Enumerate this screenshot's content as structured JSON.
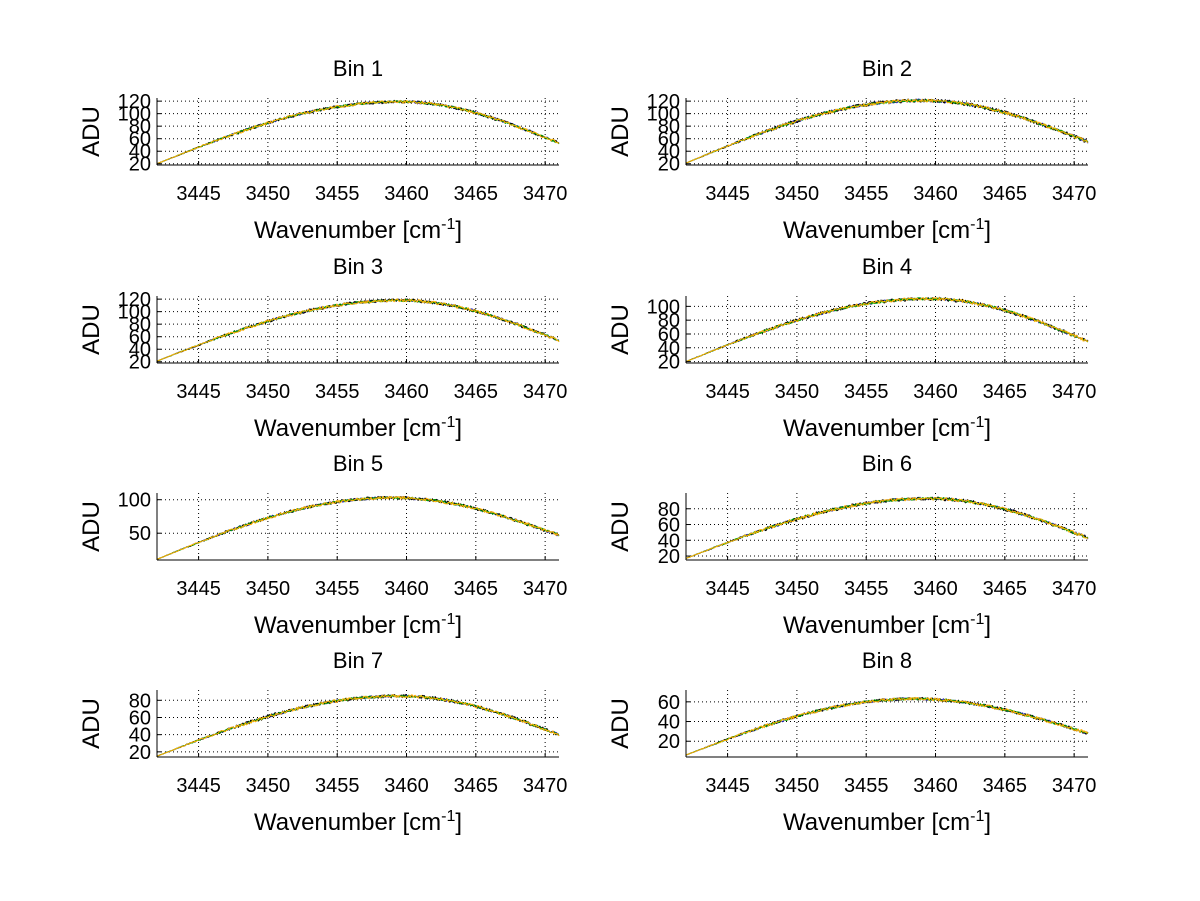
{
  "colors": {
    "series": [
      "#1f1fb4",
      "#000000",
      "#00a000",
      "#ffb000"
    ]
  },
  "chart_data": [
    {
      "type": "line",
      "title": "Bin 1",
      "xlabel": "Wavenumber [cm",
      "xlabel_sup": "-1",
      "xlabel_tail": "]",
      "ylabel": "ADU",
      "xlim": [
        3442,
        3471
      ],
      "ylim": [
        18,
        125
      ],
      "xticks": [
        3445,
        3450,
        3455,
        3460,
        3465,
        3470
      ],
      "yticks": [
        20,
        40,
        60,
        80,
        100,
        120
      ],
      "grid": true,
      "curve": {
        "x0": 3442,
        "y0": 20,
        "peak_x": 3459.5,
        "peak_y": 119,
        "x1": 3471,
        "y1": 53
      },
      "series": [
        {
          "noise": 2.0
        },
        {
          "noise": 2.5
        },
        {
          "noise": 1.8
        },
        {
          "noise": 2.2
        }
      ]
    },
    {
      "type": "line",
      "title": "Bin 2",
      "xlabel": "Wavenumber [cm",
      "xlabel_sup": "-1",
      "xlabel_tail": "]",
      "ylabel": "ADU",
      "xlim": [
        3442,
        3471
      ],
      "ylim": [
        18,
        125
      ],
      "xticks": [
        3445,
        3450,
        3455,
        3460,
        3465,
        3470
      ],
      "yticks": [
        20,
        40,
        60,
        80,
        100,
        120
      ],
      "grid": true,
      "curve": {
        "x0": 3442,
        "y0": 21,
        "peak_x": 3459,
        "peak_y": 121,
        "x1": 3471,
        "y1": 55
      },
      "series": [
        {
          "noise": 2.5
        },
        {
          "noise": 3.0
        },
        {
          "noise": 2.0
        },
        {
          "noise": 2.5
        }
      ]
    },
    {
      "type": "line",
      "title": "Bin 3",
      "xlabel": "Wavenumber [cm",
      "xlabel_sup": "-1",
      "xlabel_tail": "]",
      "ylabel": "ADU",
      "xlim": [
        3442,
        3471
      ],
      "ylim": [
        18,
        125
      ],
      "xticks": [
        3445,
        3450,
        3455,
        3460,
        3465,
        3470
      ],
      "yticks": [
        20,
        40,
        60,
        80,
        100,
        120
      ],
      "grid": true,
      "curve": {
        "x0": 3442,
        "y0": 21,
        "peak_x": 3459.5,
        "peak_y": 118,
        "x1": 3471,
        "y1": 54
      },
      "series": [
        {
          "noise": 2.0
        },
        {
          "noise": 2.5
        },
        {
          "noise": 1.8
        },
        {
          "noise": 2.4
        }
      ]
    },
    {
      "type": "line",
      "title": "Bin 4",
      "xlabel": "Wavenumber [cm",
      "xlabel_sup": "-1",
      "xlabel_tail": "]",
      "ylabel": "ADU",
      "xlim": [
        3442,
        3471
      ],
      "ylim": [
        18,
        115
      ],
      "xticks": [
        3445,
        3450,
        3455,
        3460,
        3465,
        3470
      ],
      "yticks": [
        20,
        40,
        60,
        80,
        100
      ],
      "grid": true,
      "curve": {
        "x0": 3442,
        "y0": 20,
        "peak_x": 3459.5,
        "peak_y": 111,
        "x1": 3471,
        "y1": 49
      },
      "series": [
        {
          "noise": 2.0
        },
        {
          "noise": 2.6
        },
        {
          "noise": 1.8
        },
        {
          "noise": 2.2
        }
      ]
    },
    {
      "type": "line",
      "title": "Bin 5",
      "xlabel": "Wavenumber [cm",
      "xlabel_sup": "-1",
      "xlabel_tail": "]",
      "ylabel": "ADU",
      "xlim": [
        3442,
        3471
      ],
      "ylim": [
        10,
        110
      ],
      "xticks": [
        3445,
        3450,
        3455,
        3460,
        3465,
        3470
      ],
      "yticks": [
        50,
        100
      ],
      "grid": true,
      "curve": {
        "x0": 3442,
        "y0": 11,
        "peak_x": 3459,
        "peak_y": 103,
        "x1": 3471,
        "y1": 47
      },
      "series": [
        {
          "noise": 2.0
        },
        {
          "noise": 2.4
        },
        {
          "noise": 1.7
        },
        {
          "noise": 2.2
        }
      ]
    },
    {
      "type": "line",
      "title": "Bin 6",
      "xlabel": "Wavenumber [cm",
      "xlabel_sup": "-1",
      "xlabel_tail": "]",
      "ylabel": "ADU",
      "xlim": [
        3442,
        3471
      ],
      "ylim": [
        15,
        100
      ],
      "xticks": [
        3445,
        3450,
        3455,
        3460,
        3465,
        3470
      ],
      "yticks": [
        20,
        40,
        60,
        80
      ],
      "grid": true,
      "curve": {
        "x0": 3442,
        "y0": 17,
        "peak_x": 3459.5,
        "peak_y": 93,
        "x1": 3471,
        "y1": 43
      },
      "series": [
        {
          "noise": 1.8
        },
        {
          "noise": 2.3
        },
        {
          "noise": 1.6
        },
        {
          "noise": 2.0
        }
      ]
    },
    {
      "type": "line",
      "title": "Bin 7",
      "xlabel": "Wavenumber [cm",
      "xlabel_sup": "-1",
      "xlabel_tail": "]",
      "ylabel": "ADU",
      "xlim": [
        3442,
        3471
      ],
      "ylim": [
        14,
        92
      ],
      "xticks": [
        3445,
        3450,
        3455,
        3460,
        3465,
        3470
      ],
      "yticks": [
        20,
        40,
        60,
        80
      ],
      "grid": true,
      "curve": {
        "x0": 3442,
        "y0": 15,
        "peak_x": 3459.5,
        "peak_y": 85,
        "x1": 3471,
        "y1": 40
      },
      "series": [
        {
          "noise": 1.5
        },
        {
          "noise": 2.0
        },
        {
          "noise": 1.4
        },
        {
          "noise": 1.8
        }
      ]
    },
    {
      "type": "line",
      "title": "Bin 8",
      "xlabel": "Wavenumber [cm",
      "xlabel_sup": "-1",
      "xlabel_tail": "]",
      "ylabel": "ADU",
      "xlim": [
        3442,
        3471
      ],
      "ylim": [
        4,
        72
      ],
      "xticks": [
        3445,
        3450,
        3455,
        3460,
        3465,
        3470
      ],
      "yticks": [
        20,
        40,
        60
      ],
      "grid": true,
      "curve": {
        "x0": 3442,
        "y0": 6,
        "peak_x": 3458.5,
        "peak_y": 63,
        "x1": 3471,
        "y1": 28
      },
      "series": [
        {
          "noise": 1.4
        },
        {
          "noise": 1.6
        },
        {
          "noise": 1.3
        },
        {
          "noise": 1.6
        }
      ]
    }
  ]
}
